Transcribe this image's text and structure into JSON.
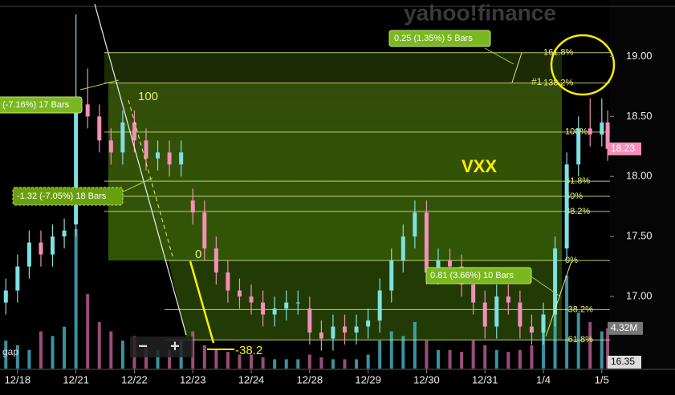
{
  "chart_data": {
    "type": "candlestick",
    "watermark": "yahoo!finance",
    "symbol_label": "VXX",
    "ylim": [
      16.4,
      19.47
    ],
    "yticks": [
      {
        "value": 19.0,
        "label": "19.00"
      },
      {
        "value": 18.5,
        "label": "18.50"
      },
      {
        "value": 18.0,
        "label": "18.00"
      },
      {
        "value": 17.5,
        "label": "17.50"
      },
      {
        "value": 17.0,
        "label": "17.00"
      }
    ],
    "xlim": [
      -0.3,
      10.14
    ],
    "xticks": [
      {
        "value": 0,
        "label": "12/18"
      },
      {
        "value": 1,
        "label": "12/21"
      },
      {
        "value": 2,
        "label": "12/22"
      },
      {
        "value": 3,
        "label": "12/23"
      },
      {
        "value": 4,
        "label": "12/24"
      },
      {
        "value": 5,
        "label": "12/28"
      },
      {
        "value": 6,
        "label": "12/29"
      },
      {
        "value": 7,
        "label": "12/30"
      },
      {
        "value": 8,
        "label": "12/31"
      },
      {
        "value": 9,
        "label": "1/4"
      },
      {
        "value": 10,
        "label": "1/5"
      }
    ],
    "up_color": "#7fe0e0",
    "down_color": "#f38fb8",
    "x": [
      -0.2,
      0,
      0.2,
      0.4,
      0.6,
      0.8,
      1.0,
      1.2,
      1.4,
      1.6,
      1.8,
      2.0,
      2.2,
      2.4,
      2.6,
      2.8,
      3.0,
      3.2,
      3.4,
      3.6,
      3.8,
      4.0,
      4.2,
      4.4,
      4.6,
      4.8,
      5.0,
      5.2,
      5.4,
      5.6,
      5.8,
      6.0,
      6.2,
      6.4,
      6.6,
      6.8,
      7.0,
      7.2,
      7.4,
      7.6,
      7.8,
      8.0,
      8.2,
      8.4,
      8.6,
      8.8,
      9.0,
      9.2,
      9.4,
      9.6,
      9.8,
      10.0,
      10.1
    ],
    "open": [
      16.95,
      17.05,
      17.25,
      17.45,
      17.35,
      17.5,
      17.6,
      18.6,
      18.5,
      18.3,
      18.2,
      18.45,
      18.3,
      18.15,
      18.2,
      18.1,
      17.8,
      17.7,
      17.4,
      17.2,
      17.05,
      17.0,
      16.95,
      16.85,
      16.9,
      16.95,
      16.9,
      16.7,
      16.65,
      16.75,
      16.7,
      16.75,
      16.8,
      17.05,
      17.3,
      17.5,
      17.7,
      17.2,
      17.3,
      17.25,
      17.1,
      16.95,
      16.75,
      17.0,
      16.95,
      16.75,
      16.7,
      16.85,
      17.4,
      18.1,
      18.4,
      18.35,
      18.45
    ],
    "high": [
      17.15,
      17.35,
      17.55,
      17.55,
      17.6,
      17.65,
      19.35,
      18.9,
      18.6,
      18.4,
      18.55,
      18.55,
      18.4,
      18.3,
      18.3,
      18.3,
      17.9,
      17.8,
      17.5,
      17.3,
      17.15,
      17.1,
      17.05,
      17.0,
      17.05,
      17.05,
      17.0,
      16.8,
      16.85,
      16.85,
      16.85,
      16.9,
      17.15,
      17.4,
      17.6,
      17.8,
      17.8,
      17.4,
      17.4,
      17.35,
      17.2,
      17.05,
      17.1,
      17.1,
      17.05,
      16.85,
      16.95,
      17.5,
      18.2,
      18.5,
      18.65,
      18.65,
      18.55
    ],
    "low": [
      16.85,
      16.95,
      17.15,
      17.25,
      17.25,
      17.4,
      17.5,
      18.4,
      18.2,
      18.1,
      18.1,
      18.2,
      18.05,
      18.05,
      18.0,
      18.0,
      17.6,
      17.3,
      17.1,
      16.95,
      16.9,
      16.85,
      16.75,
      16.75,
      16.8,
      16.85,
      16.6,
      16.55,
      16.55,
      16.6,
      16.6,
      16.65,
      16.7,
      16.95,
      17.2,
      17.4,
      17.1,
      17.1,
      17.15,
      17.0,
      16.85,
      16.65,
      16.65,
      16.85,
      16.65,
      16.6,
      16.6,
      16.75,
      17.3,
      18.0,
      18.25,
      18.25,
      18.13
    ],
    "close": [
      17.05,
      17.25,
      17.45,
      17.35,
      17.5,
      17.55,
      18.6,
      18.5,
      18.3,
      18.2,
      18.45,
      18.3,
      18.15,
      18.2,
      18.1,
      18.2,
      17.7,
      17.4,
      17.2,
      17.05,
      17.0,
      16.95,
      16.85,
      16.9,
      16.95,
      16.95,
      16.7,
      16.65,
      16.75,
      16.7,
      16.75,
      16.8,
      17.05,
      17.3,
      17.5,
      17.7,
      17.2,
      17.3,
      17.25,
      17.1,
      16.95,
      16.75,
      17.0,
      16.95,
      16.75,
      16.7,
      16.85,
      17.4,
      18.1,
      18.4,
      18.35,
      18.45,
      18.23
    ],
    "volume": [
      3.0,
      2.5,
      2.0,
      4.0,
      3.5,
      4.5,
      15.0,
      8.0,
      5.0,
      4.0,
      3.0,
      3.5,
      2.5,
      2.0,
      2.0,
      3.0,
      4.0,
      2.5,
      2.0,
      1.8,
      1.5,
      1.5,
      1.2,
      1.0,
      1.0,
      1.0,
      1.5,
      1.2,
      1.0,
      1.0,
      1.0,
      1.5,
      3.0,
      4.0,
      3.5,
      5.0,
      3.0,
      2.0,
      2.0,
      1.8,
      3.0,
      2.5,
      2.0,
      1.8,
      2.0,
      2.5,
      4.0,
      8.0,
      10.0,
      6.0,
      5.0,
      4.0,
      4.32
    ],
    "volume_ylim": [
      0,
      15.5
    ],
    "volume_tick": {
      "value": 4.32,
      "label": "4.32M"
    },
    "last_price": 18.23,
    "bottom_price": 16.35,
    "fib": {
      "base": 17.3,
      "top": 18.37,
      "levels": [
        {
          "value": 161.8,
          "label": "161.8%"
        },
        {
          "value": 138.2,
          "label": "138.2%"
        },
        {
          "value": 100,
          "label": "100%"
        },
        {
          "value": 61.8,
          "label": "61.8%"
        },
        {
          "value": 50,
          "label": "50%"
        },
        {
          "value": 38.2,
          "label": "38.2%"
        },
        {
          "value": 0,
          "label": "0%"
        },
        {
          "value": -38.2,
          "label": "-38.2%"
        },
        {
          "value": -61.8,
          "label": "-61.8%"
        }
      ]
    },
    "annotations": {
      "marker_100": "100",
      "marker_0": "0",
      "marker_neg": "-38.2",
      "wave": "#1",
      "gap": "gap",
      "callout_1": "(-7.16%) 17 Bars",
      "callout_2": "-1.32 (-7.05%) 18 Bars",
      "callout_3": "0.25 (1.35%) 5 Bars",
      "callout_4": "0.81 (3.66%) 10 Bars"
    },
    "buttons": {
      "zoom_out": "−",
      "zoom_in": "+"
    }
  }
}
